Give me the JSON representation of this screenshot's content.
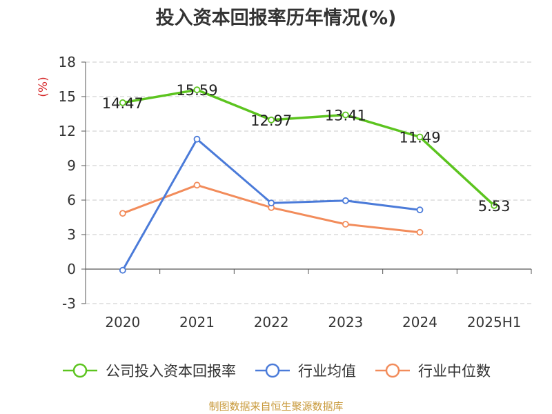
{
  "chart_data": {
    "type": "line",
    "title": "投入资本回报率历年情况(%)",
    "ylabel": "(%)",
    "xlabel": "",
    "categories": [
      "2020",
      "2021",
      "2022",
      "2023",
      "2024",
      "2025H1"
    ],
    "yticks": [
      "18",
      "15",
      "12",
      "9",
      "6",
      "3",
      "0",
      "-3"
    ],
    "ylim": [
      -3,
      18
    ],
    "grid": true,
    "legend_position": "bottom",
    "series": [
      {
        "name": "公司投入资本回报率",
        "color": "#5cc41f",
        "values": [
          14.47,
          15.59,
          12.97,
          13.41,
          11.49,
          5.53
        ],
        "labels": [
          "14.47",
          "15.59",
          "12.97",
          "13.41",
          "11.49",
          "5.53"
        ]
      },
      {
        "name": "行业均值",
        "color": "#4b7bd9",
        "values": [
          -0.1,
          11.3,
          5.75,
          5.95,
          5.15,
          null
        ]
      },
      {
        "name": "行业中位数",
        "color": "#f28c5b",
        "values": [
          4.85,
          7.3,
          5.35,
          3.9,
          3.2,
          null
        ]
      }
    ]
  },
  "source_note": "制图数据来自恒生聚源数据库"
}
